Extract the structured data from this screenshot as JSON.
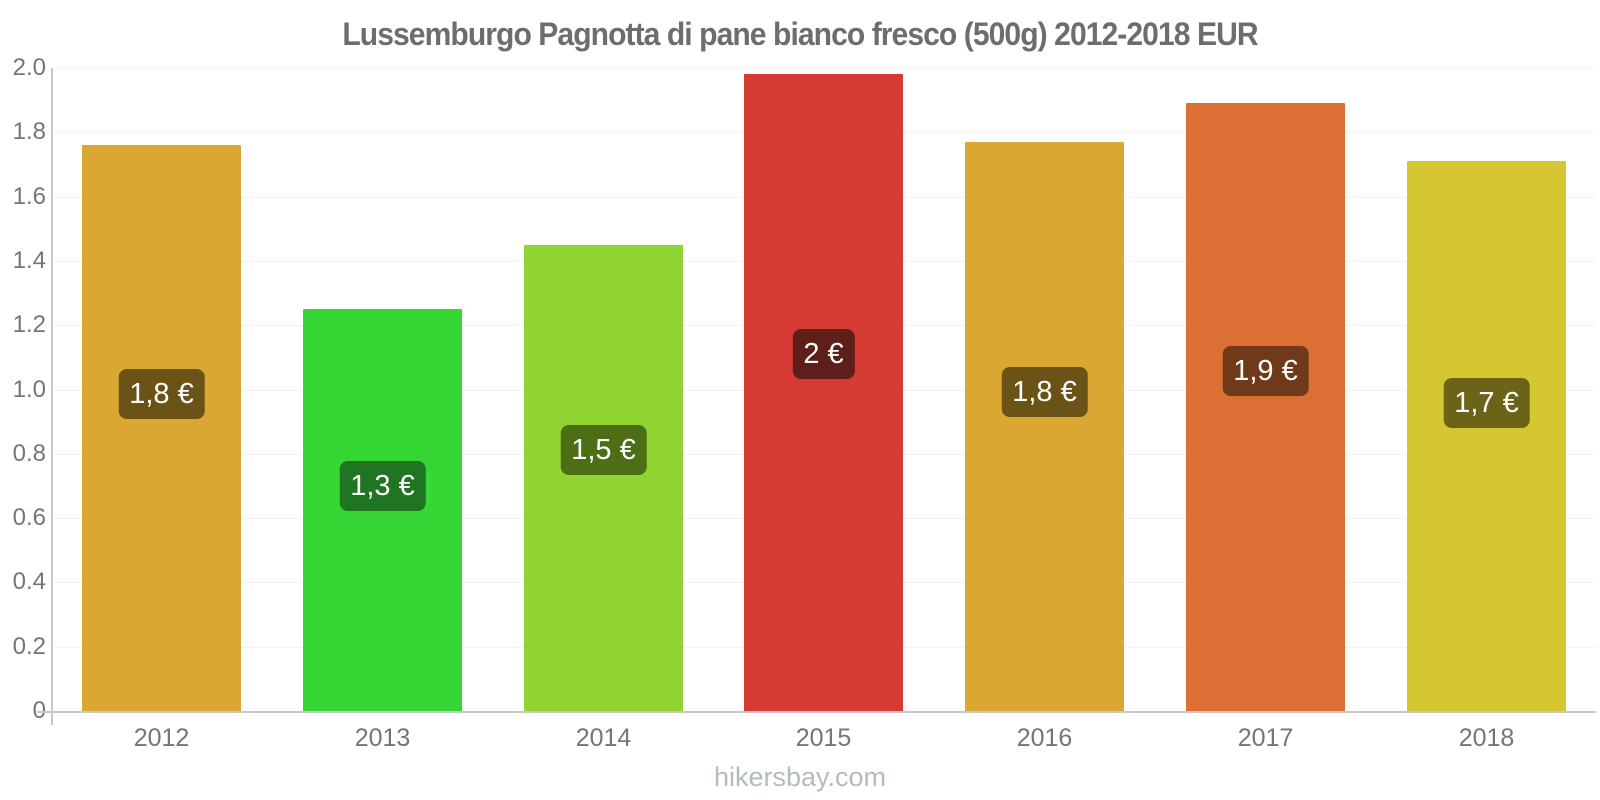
{
  "header": {
    "title": "Lussemburgo Pagnotta di pane bianco fresco (500g) 2012-2018 EUR"
  },
  "footer": {
    "brand": "hikersbay.com"
  },
  "chart_data": {
    "type": "bar",
    "title": "Lussemburgo Pagnotta di pane bianco fresco (500g) 2012-2018 EUR",
    "currency": "EUR",
    "categories": [
      "2012",
      "2013",
      "2014",
      "2015",
      "2016",
      "2017",
      "2018"
    ],
    "values": [
      1.76,
      1.25,
      1.45,
      1.98,
      1.77,
      1.89,
      1.71
    ],
    "bar_labels": [
      "1,8 €",
      "1,3 €",
      "1,5 €",
      "2 €",
      "1,8 €",
      "1,9 €",
      "1,7 €"
    ],
    "bar_colors": [
      "#daa732",
      "#36d634",
      "#8fd433",
      "#d63b33",
      "#daa732",
      "#dc6f33",
      "#d5c731"
    ],
    "badge_colors": [
      "#6b5317",
      "#1f7522",
      "#4c6e15",
      "#5e1e1a",
      "#6b5317",
      "#6f3a19",
      "#6a6318"
    ],
    "ylim": [
      0,
      2
    ],
    "yticks": [
      {
        "label": "2.0",
        "value": 2.0
      },
      {
        "label": "1.8",
        "value": 1.8
      },
      {
        "label": "1.6",
        "value": 1.6
      },
      {
        "label": "1.4",
        "value": 1.4
      },
      {
        "label": "1.2",
        "value": 1.2
      },
      {
        "label": "1.0",
        "value": 1.0
      },
      {
        "label": "0.8",
        "value": 0.8
      },
      {
        "label": "0.6",
        "value": 0.6
      },
      {
        "label": "0.4",
        "value": 0.4
      },
      {
        "label": "0.2",
        "value": 0.2
      },
      {
        "label": "0",
        "value": 0
      }
    ],
    "grid": "horizontal-light",
    "legend": "none",
    "colors": {
      "axis": "#c8c8c8",
      "grid": "#f2f2f2",
      "tick_text": "#757575",
      "title_text": "#6d6d6d",
      "footer_text": "#b3beb3",
      "badge_text": "#ffffff"
    }
  }
}
